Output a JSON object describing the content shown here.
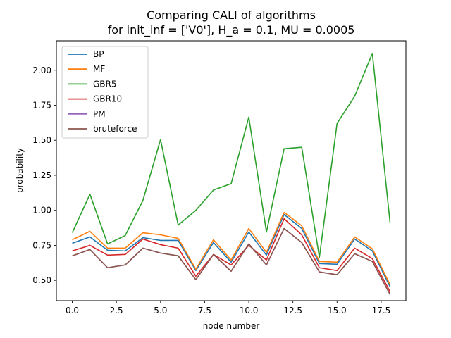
{
  "chart_data": {
    "type": "line",
    "title_line1": "Comparing CALI of algorithms",
    "title_line2": "for init_inf = ['V0'], H_a = 0.1, MU = 0.0005",
    "xlabel": "node number",
    "ylabel": "probability",
    "xlim": [
      -0.9,
      18.9
    ],
    "ylim": [
      0.355,
      2.21
    ],
    "xticks": [
      0.0,
      2.5,
      5.0,
      7.5,
      10.0,
      12.5,
      15.0,
      17.5
    ],
    "xtick_labels": [
      "0.0",
      "2.5",
      "5.0",
      "7.5",
      "10.0",
      "12.5",
      "15.0",
      "17.5"
    ],
    "yticks": [
      0.5,
      0.75,
      1.0,
      1.25,
      1.5,
      1.75,
      2.0
    ],
    "ytick_labels": [
      "0.50",
      "0.75",
      "1.00",
      "1.25",
      "1.50",
      "1.75",
      "2.00"
    ],
    "grid": false,
    "legend_position": "upper-left",
    "x": [
      0,
      1,
      2,
      3,
      4,
      5,
      6,
      7,
      8,
      9,
      10,
      11,
      12,
      13,
      14,
      15,
      16,
      17,
      18
    ],
    "series": [
      {
        "name": "BP",
        "color": "#1f77b4",
        "values": [
          0.765,
          0.81,
          0.715,
          0.71,
          0.805,
          0.785,
          0.785,
          0.57,
          0.77,
          0.63,
          0.845,
          0.68,
          0.97,
          0.87,
          0.62,
          0.615,
          0.795,
          0.71,
          0.455
        ]
      },
      {
        "name": "MF",
        "color": "#ff7f0e",
        "values": [
          0.79,
          0.85,
          0.73,
          0.73,
          0.84,
          0.825,
          0.8,
          0.58,
          0.79,
          0.645,
          0.87,
          0.7,
          0.985,
          0.89,
          0.635,
          0.63,
          0.81,
          0.725,
          0.47
        ]
      },
      {
        "name": "GBR5",
        "color": "#2ca02c",
        "values": [
          0.84,
          1.115,
          0.76,
          0.82,
          1.07,
          1.505,
          0.895,
          1.0,
          1.145,
          1.19,
          1.665,
          0.845,
          1.44,
          1.45,
          0.665,
          1.62,
          1.815,
          2.12,
          0.915
        ]
      },
      {
        "name": "GBR10",
        "color": "#d62728",
        "values": [
          0.71,
          0.75,
          0.68,
          0.685,
          0.795,
          0.755,
          0.73,
          0.53,
          0.685,
          0.61,
          0.75,
          0.645,
          0.94,
          0.825,
          0.59,
          0.57,
          0.73,
          0.655,
          0.42
        ]
      },
      {
        "name": "PM",
        "color": "#9467bd",
        "values": [
          0.675,
          0.72,
          0.59,
          0.61,
          0.73,
          0.695,
          0.675,
          0.505,
          0.685,
          0.565,
          0.76,
          0.61,
          0.87,
          0.77,
          0.56,
          0.54,
          0.69,
          0.635,
          0.4
        ]
      },
      {
        "name": "bruteforce",
        "color": "#8c564b",
        "values": [
          0.675,
          0.72,
          0.59,
          0.61,
          0.73,
          0.695,
          0.675,
          0.505,
          0.685,
          0.565,
          0.76,
          0.61,
          0.87,
          0.77,
          0.56,
          0.54,
          0.69,
          0.635,
          0.4
        ]
      }
    ]
  }
}
